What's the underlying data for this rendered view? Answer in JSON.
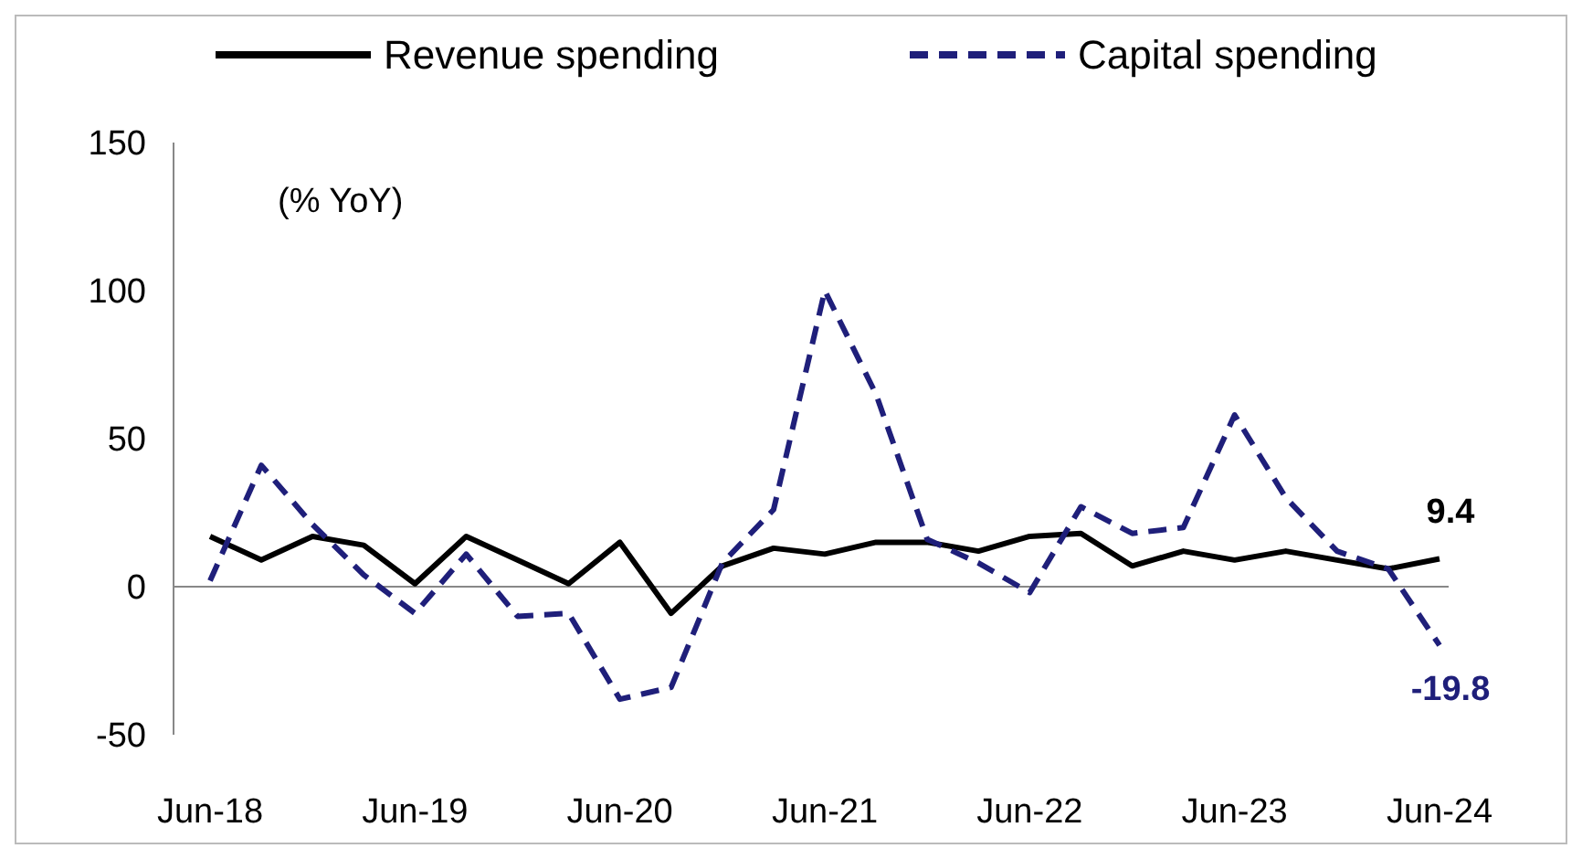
{
  "chart_data": {
    "type": "line",
    "ylabel": "(% YoY)",
    "categories": [
      "Jun-18",
      null,
      null,
      null,
      "Jun-19",
      null,
      null,
      null,
      "Jun-20",
      null,
      null,
      null,
      "Jun-21",
      null,
      null,
      null,
      "Jun-22",
      null,
      null,
      null,
      "Jun-23",
      null,
      null,
      null,
      "Jun-24"
    ],
    "series": [
      {
        "name": "Revenue spending",
        "color": "#000000",
        "line_style": "solid",
        "values": [
          17,
          9,
          17,
          14,
          1,
          17,
          9,
          1,
          15,
          -9,
          7,
          13,
          11,
          15,
          15,
          12,
          17,
          18,
          7,
          12,
          9,
          12,
          9,
          6,
          9.4
        ]
      },
      {
        "name": "Capital spending",
        "color": "#1f1f7a",
        "line_style": "dashed",
        "values": [
          2,
          41,
          21,
          4,
          -9,
          11,
          -10,
          -9,
          -38,
          -34,
          8,
          26,
          100,
          65,
          16,
          8,
          -2,
          27,
          18,
          20,
          58,
          30,
          12,
          6,
          -19.8
        ]
      }
    ],
    "ylim": [
      -50,
      150
    ],
    "yticks": [
      -50,
      0,
      50,
      100,
      150
    ],
    "legend": "top",
    "marker": "none",
    "annotations": [
      {
        "text": "9.4",
        "x": "Jun-24",
        "y": 9.4
      },
      {
        "text": "-19.8",
        "x": "Jun-24",
        "y": -19.8
      }
    ]
  }
}
